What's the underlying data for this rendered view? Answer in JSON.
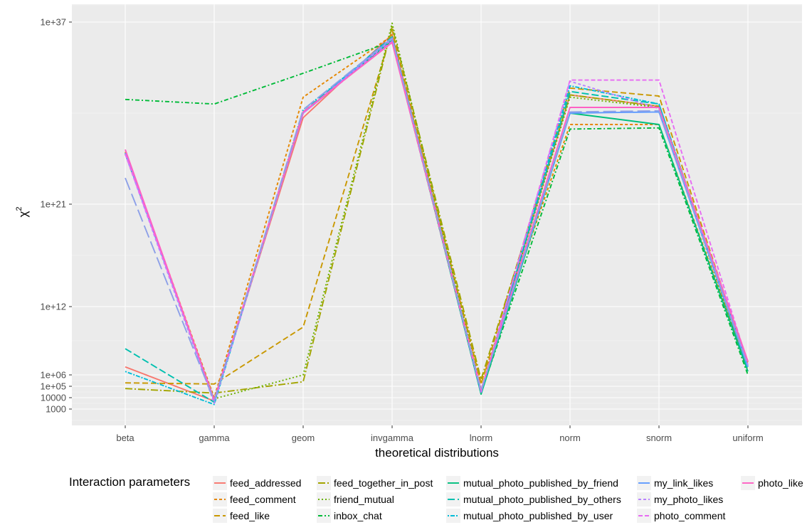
{
  "chart_data": {
    "type": "line",
    "xlabel": "theoretical distributions",
    "ylabel": "χ",
    "ylabel_superscript": "2",
    "y_scale": "log10 of (value/1000)",
    "y_ticks": [
      {
        "label": "1000",
        "log10": 3
      },
      {
        "label": "10000",
        "log10": 4
      },
      {
        "label": "1e+05",
        "log10": 5
      },
      {
        "label": "1e+06",
        "log10": 6
      },
      {
        "label": "1e+12",
        "log10": 12
      },
      {
        "label": "1e+21",
        "log10": 21
      },
      {
        "label": "1e+37",
        "log10": 37
      }
    ],
    "categories": [
      "beta",
      "gamma",
      "geom",
      "invgamma",
      "lnorm",
      "norm",
      "snorm",
      "uniform"
    ],
    "legend_title": "Interaction parameters",
    "legend_position": "bottom",
    "grid": true,
    "series": [
      {
        "name": "feed_addressed",
        "color": "#F8766D",
        "dash": "",
        "log10": [
          6.7,
          3.7,
          28.6,
          35.9,
          4.6,
          30.6,
          29.6,
          7.1
        ]
      },
      {
        "name": "feed_comment",
        "color": "#E58700",
        "dash": "4,3",
        "log10": [
          25.6,
          4.0,
          30.4,
          35.8,
          5.3,
          28.0,
          28.0,
          6.6
        ]
      },
      {
        "name": "feed_like",
        "color": "#C99800",
        "dash": "8,4",
        "log10": [
          5.3,
          5.2,
          10.2,
          36.3,
          5.2,
          31.2,
          30.5,
          6.8
        ]
      },
      {
        "name": "feed_together_in_post",
        "color": "#A3A500",
        "dash": "10,3,2,3",
        "log10": [
          4.8,
          4.4,
          5.4,
          36.6,
          5.6,
          30.6,
          29.6,
          6.4
        ]
      },
      {
        "name": "friend_mutual",
        "color": "#6BB100",
        "dash": "2,3",
        "log10": [
          25.4,
          3.9,
          6.0,
          36.9,
          4.7,
          30.4,
          29.5,
          6.2
        ]
      },
      {
        "name": "inbox_chat",
        "color": "#00BA38",
        "dash": "6,3,2,3",
        "log10": [
          30.2,
          29.8,
          32.5,
          35.3,
          4.4,
          27.6,
          27.7,
          6.0
        ]
      },
      {
        "name": "mutual_photo_published_by_friend",
        "color": "#00BF7D",
        "dash": "",
        "log10": [
          25.5,
          3.8,
          29.0,
          35.4,
          4.3,
          29.0,
          28.0,
          6.3
        ]
      },
      {
        "name": "mutual_photo_published_by_others",
        "color": "#00C0AF",
        "dash": "10,4",
        "log10": [
          8.3,
          3.6,
          29.1,
          35.7,
          4.5,
          30.9,
          29.8,
          6.5
        ]
      },
      {
        "name": "mutual_photo_published_by_user",
        "color": "#00BCD8",
        "dash": "2,2,6,2",
        "log10": [
          6.3,
          3.4,
          29.3,
          35.5,
          4.4,
          31.4,
          29.8,
          6.7
        ]
      },
      {
        "name": "my_link_likes",
        "color": "#619CFF",
        "dash": "",
        "log10": [
          25.5,
          3.7,
          29.0,
          35.6,
          4.6,
          29.0,
          29.1,
          6.7
        ]
      },
      {
        "name": "my_photo_likes",
        "color": "#B983FF",
        "dash": "4,3",
        "log10": [
          25.4,
          3.5,
          29.0,
          35.5,
          4.5,
          31.8,
          29.4,
          6.9
        ]
      },
      {
        "name": "photo_comment",
        "color": "#E76BF3",
        "dash": "6,3",
        "log10": [
          25.4,
          3.8,
          29.0,
          35.3,
          4.5,
          31.9,
          31.9,
          7.0
        ]
      },
      {
        "name": "photo_like",
        "color": "#FF61C3",
        "dash": "",
        "log10": [
          25.8,
          3.8,
          29.1,
          35.2,
          4.7,
          29.5,
          29.5,
          7.2
        ]
      }
    ],
    "extra_series": [
      {
        "name": "my_link_likes",
        "color": "#8DA0E8",
        "dash": "18,6",
        "log10": [
          23.3,
          3.7,
          29.3,
          35.6,
          4.6,
          29.1,
          29.2,
          6.8
        ]
      }
    ]
  }
}
